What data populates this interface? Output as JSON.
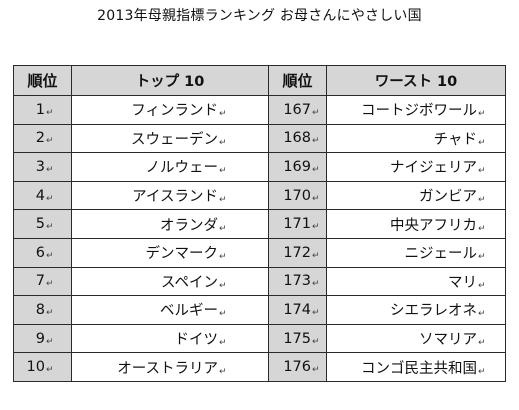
{
  "title": "2013年母親指標ランキング お母さんにやさしい国",
  "table": {
    "headers": {
      "rank": "順位",
      "top": "トップ 10",
      "worst_rank": "順位",
      "worst": "ワースト 10"
    },
    "paragraph_mark": "↵",
    "rows": [
      {
        "rank": "1",
        "top": "フィンランド",
        "worst_rank": "167",
        "worst": "コートジボワール"
      },
      {
        "rank": "2",
        "top": "スウェーデン",
        "worst_rank": "168",
        "worst": "チャド"
      },
      {
        "rank": "3",
        "top": "ノルウェー",
        "worst_rank": "169",
        "worst": "ナイジェリア"
      },
      {
        "rank": "4",
        "top": "アイスランド",
        "worst_rank": "170",
        "worst": "ガンビア"
      },
      {
        "rank": "5",
        "top": "オランダ",
        "worst_rank": "171",
        "worst": "中央アフリカ"
      },
      {
        "rank": "6",
        "top": "デンマーク",
        "worst_rank": "172",
        "worst": "ニジェール"
      },
      {
        "rank": "7",
        "top": "スペイン",
        "worst_rank": "173",
        "worst": "マリ"
      },
      {
        "rank": "8",
        "top": "ベルギー",
        "worst_rank": "174",
        "worst": "シエラレオネ"
      },
      {
        "rank": "9",
        "top": "ドイツ",
        "worst_rank": "175",
        "worst": "ソマリア"
      },
      {
        "rank": "10",
        "top": "オーストラリア",
        "worst_rank": "176",
        "worst": "コンゴ民主共和国"
      }
    ]
  }
}
